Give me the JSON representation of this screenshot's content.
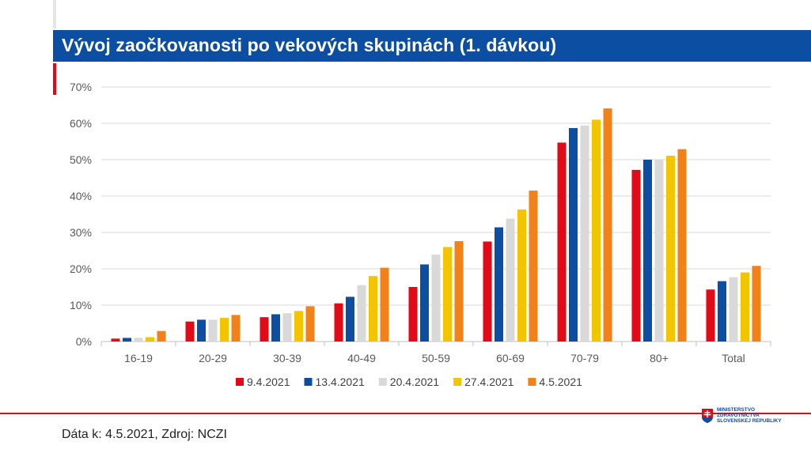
{
  "title": "Vývoj zaočkovanosti po vekových skupinách (1. dávkou)",
  "footer": "Dáta k: 4.5.2021, Zdroj: NCZI",
  "logo": {
    "line1": "MINISTERSTVO",
    "line2": "ZDRAVOTNÍCTVA",
    "line3": "SLOVENSKEJ REPUBLIKY"
  },
  "colors": {
    "brand_blue": "#0b4ea2",
    "brand_red": "#e20a16"
  },
  "chart_data": {
    "type": "bar",
    "title": "Vývoj zaočkovanosti po vekových skupinách (1. dávkou)",
    "xlabel": "",
    "ylabel": "",
    "ylim": [
      0,
      70
    ],
    "yticks": [
      0,
      10,
      20,
      30,
      40,
      50,
      60,
      70
    ],
    "ytick_labels": [
      "0%",
      "10%",
      "20%",
      "30%",
      "40%",
      "50%",
      "60%",
      "70%"
    ],
    "grid": true,
    "legend_position": "bottom",
    "categories": [
      "16-19",
      "20-29",
      "30-39",
      "40-49",
      "50-59",
      "60-69",
      "70-79",
      "80+",
      "Total"
    ],
    "series": [
      {
        "name": "9.4.2021",
        "color": "#e20a16",
        "values": [
          0.8,
          5.5,
          6.7,
          10.5,
          15.0,
          27.5,
          54.7,
          47.2,
          14.3
        ]
      },
      {
        "name": "13.4.2021",
        "color": "#0b4ea2",
        "values": [
          1.0,
          6.0,
          7.5,
          12.3,
          21.2,
          31.4,
          58.7,
          50.0,
          16.6
        ]
      },
      {
        "name": "20.4.2021",
        "color": "#d9d9d9",
        "values": [
          1.0,
          6.0,
          7.8,
          15.5,
          23.9,
          33.8,
          59.4,
          50.0,
          17.7
        ]
      },
      {
        "name": "27.4.2021",
        "color": "#f2c500",
        "values": [
          1.2,
          6.5,
          8.4,
          18.0,
          26.0,
          36.3,
          61.0,
          51.1,
          19.0
        ]
      },
      {
        "name": "4.5.2021",
        "color": "#f28118",
        "values": [
          2.9,
          7.3,
          9.7,
          20.3,
          27.6,
          41.5,
          64.1,
          52.9,
          20.8
        ]
      }
    ]
  }
}
